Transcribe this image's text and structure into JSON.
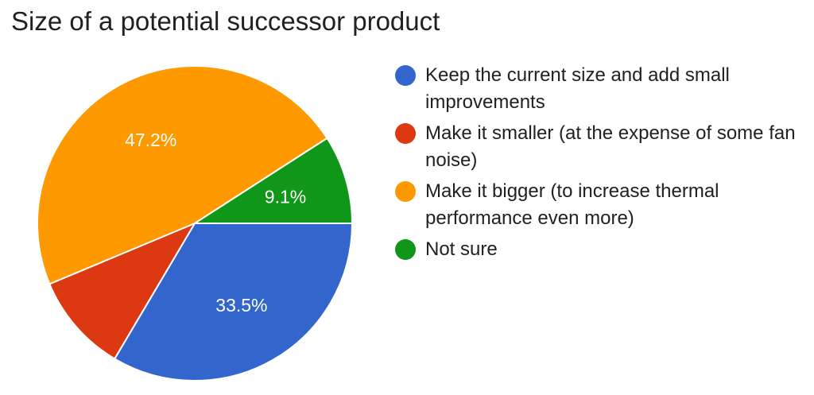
{
  "title": "Size of a potential successor product",
  "chart_data": {
    "type": "pie",
    "title": "Size of a potential successor product",
    "legend_position": "right",
    "start_angle": "90deg-clockwise-from-3-oclock",
    "slices": [
      {
        "label": "Keep the current size and add small improvements",
        "value": 33.5,
        "display": "33.5%",
        "color": "#3366cc"
      },
      {
        "label": "Make it smaller (at the expense of some fan noise)",
        "value": 10.2,
        "display": "",
        "color": "#dc3912"
      },
      {
        "label": "Make it bigger (to increase thermal performance even more)",
        "value": 47.2,
        "display": "47.2%",
        "color": "#ff9900"
      },
      {
        "label": "Not sure",
        "value": 9.1,
        "display": "9.1%",
        "color": "#109618"
      }
    ]
  },
  "legend": [
    {
      "text": "Keep the current size and add small improvements",
      "color": "#3366cc"
    },
    {
      "text": "Make it smaller (at the expense of some fan noise)",
      "color": "#dc3912"
    },
    {
      "text": "Make it bigger (to increase thermal performance even more)",
      "color": "#ff9900"
    },
    {
      "text": "Not sure",
      "color": "#109618"
    }
  ]
}
